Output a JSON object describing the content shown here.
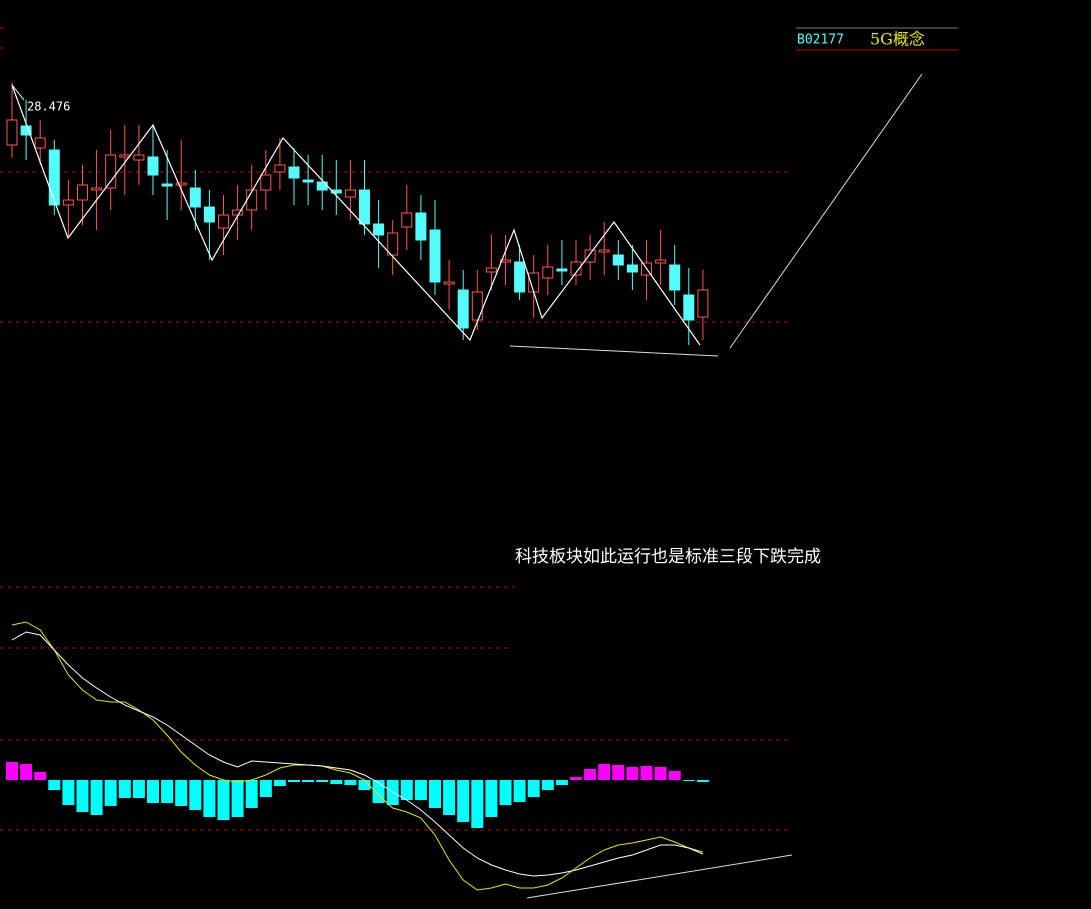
{
  "chart_data": [
    {
      "type": "candlestick",
      "code": "B02177",
      "board": "5G概念",
      "annotation": "科技板块如此运行也是标准三段下跌完成",
      "up_color": "#ff5555",
      "down_color": "#54fcfc",
      "ylim": [
        24.5,
        29.3
      ],
      "open": [
        27.85,
        28.04,
        27.82,
        27.8,
        27.25,
        27.3,
        27.4,
        27.42,
        27.73,
        27.7,
        27.73,
        27.46,
        27.45,
        27.42,
        27.23,
        27.02,
        27.15,
        27.2,
        27.4,
        27.58,
        27.63,
        27.5,
        27.48,
        27.4,
        27.33,
        27.4,
        27.06,
        26.75,
        27.03,
        27.17,
        27.0,
        26.46,
        26.4,
        26.1,
        26.58,
        26.68,
        26.68,
        26.38,
        26.52,
        26.61,
        26.55,
        26.68,
        26.78,
        26.75,
        26.65,
        26.55,
        26.67,
        26.65,
        26.35,
        26.13
      ],
      "high": [
        28.476,
        28.3,
        28.1,
        27.9,
        27.5,
        27.65,
        27.8,
        28.0,
        28.05,
        28.05,
        28.05,
        27.8,
        27.9,
        27.6,
        27.4,
        27.35,
        27.45,
        27.65,
        27.8,
        27.92,
        27.82,
        27.75,
        27.75,
        27.7,
        27.7,
        27.7,
        27.3,
        27.1,
        27.45,
        27.35,
        27.3,
        26.7,
        26.6,
        26.6,
        26.95,
        26.95,
        26.85,
        26.75,
        26.85,
        26.9,
        26.9,
        26.95,
        27.08,
        26.9,
        26.85,
        26.9,
        27.0,
        26.85,
        26.62,
        26.6
      ],
      "low": [
        27.72,
        27.7,
        27.65,
        27.15,
        26.92,
        27.05,
        27.0,
        27.2,
        27.35,
        27.45,
        27.35,
        27.1,
        27.2,
        27.0,
        26.7,
        26.75,
        26.9,
        27.0,
        27.2,
        27.4,
        27.25,
        27.25,
        27.2,
        27.15,
        27.1,
        26.95,
        26.62,
        26.55,
        26.8,
        26.7,
        26.35,
        26.2,
        25.9,
        26.0,
        26.4,
        26.45,
        26.3,
        26.12,
        26.35,
        26.45,
        26.45,
        26.5,
        26.55,
        26.5,
        26.4,
        26.3,
        26.45,
        26.25,
        25.85,
        25.9
      ],
      "close": [
        28.1,
        27.95,
        27.92,
        27.25,
        27.3,
        27.45,
        27.42,
        27.75,
        27.75,
        27.75,
        27.55,
        27.44,
        27.47,
        27.23,
        27.08,
        27.15,
        27.2,
        27.4,
        27.55,
        27.65,
        27.52,
        27.48,
        27.4,
        27.37,
        27.4,
        27.06,
        26.95,
        26.97,
        27.17,
        26.9,
        26.48,
        26.48,
        26.02,
        26.38,
        26.62,
        26.7,
        26.38,
        26.57,
        26.63,
        26.59,
        26.68,
        26.8,
        26.8,
        26.65,
        26.58,
        26.67,
        26.7,
        26.4,
        26.1,
        26.4
      ]
    },
    {
      "type": "macd",
      "ylim": [
        -1.29,
        1.8
      ],
      "pos_color": "#ff00ff",
      "neg_color": "#00ffff",
      "histogram": [
        0.18,
        0.16,
        0.08,
        -0.1,
        -0.25,
        -0.32,
        -0.35,
        -0.26,
        -0.18,
        -0.18,
        -0.23,
        -0.23,
        -0.26,
        -0.3,
        -0.37,
        -0.4,
        -0.37,
        -0.28,
        -0.17,
        -0.06,
        -0.02,
        -0.02,
        -0.02,
        -0.04,
        -0.05,
        -0.1,
        -0.23,
        -0.25,
        -0.2,
        -0.2,
        -0.28,
        -0.35,
        -0.42,
        -0.48,
        -0.37,
        -0.25,
        -0.22,
        -0.17,
        -0.1,
        -0.05,
        0.03,
        0.11,
        0.16,
        0.15,
        0.13,
        0.14,
        0.13,
        0.09,
        -0.01,
        -0.02
      ],
      "series": [
        {
          "color": "#e6e600",
          "values": [
            1.55,
            1.58,
            1.5,
            1.3,
            1.05,
            0.9,
            0.8,
            0.78,
            0.78,
            0.7,
            0.6,
            0.45,
            0.28,
            0.15,
            0.05,
            0.0,
            -0.02,
            0.0,
            0.05,
            0.12,
            0.15,
            0.15,
            0.14,
            0.1,
            0.07,
            0.0,
            -0.15,
            -0.28,
            -0.32,
            -0.38,
            -0.55,
            -0.8,
            -1.0,
            -1.1,
            -1.08,
            -1.04,
            -1.08,
            -1.08,
            -1.05,
            -0.98,
            -0.88,
            -0.78,
            -0.7,
            -0.65,
            -0.63,
            -0.6,
            -0.57,
            -0.62,
            -0.68,
            -0.72
          ]
        },
        {
          "color": "#ffffff",
          "values": [
            1.4,
            1.48,
            1.45,
            1.3,
            1.15,
            1.02,
            0.92,
            0.83,
            0.75,
            0.69,
            0.63,
            0.55,
            0.45,
            0.35,
            0.25,
            0.18,
            0.13,
            0.19,
            0.18,
            0.17,
            0.16,
            0.15,
            0.14,
            0.12,
            0.1,
            0.05,
            -0.03,
            -0.12,
            -0.2,
            -0.3,
            -0.42,
            -0.55,
            -0.68,
            -0.78,
            -0.85,
            -0.9,
            -0.94,
            -0.96,
            -0.95,
            -0.93,
            -0.9,
            -0.86,
            -0.82,
            -0.78,
            -0.75,
            -0.7,
            -0.65,
            -0.65,
            -0.68,
            -0.74
          ]
        }
      ]
    }
  ]
}
